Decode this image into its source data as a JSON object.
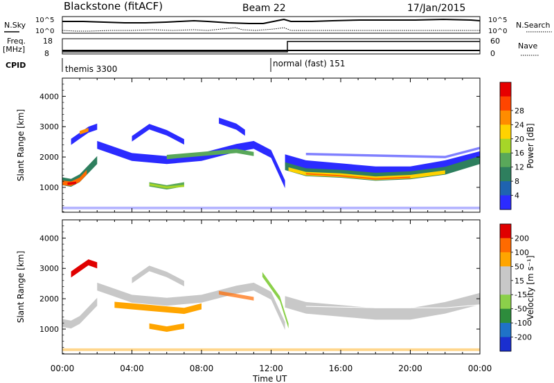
{
  "header": {
    "station": "Blackstone (fitACF)",
    "beam": "Beam 22",
    "date": "17/Jan/2015"
  },
  "top_panels": {
    "nsky_label": "N.Sky",
    "nsky_tick_high": "10^5",
    "nsky_tick_low": "10^0",
    "nsearch_label": "N.Search",
    "nsearch_tick_high": "10^5",
    "nsearch_tick_low": "10^0",
    "freq_label": "Freq.",
    "freq_unit": "[MHz]",
    "freq_tick_high": "18",
    "freq_tick_low": "8",
    "nave_label": "Nave",
    "nave_tick_high": "60",
    "nave_tick_low": "0",
    "cpid_label": "CPID",
    "cpid_segments": [
      {
        "name": "themis 3300",
        "start_hour": 0,
        "end_hour": 12.0
      },
      {
        "name": "normal (fast) 151",
        "start_hour": 12.0,
        "end_hour": 24
      }
    ]
  },
  "chart_data": [
    {
      "type": "heatmap",
      "quantity": "power",
      "ylabel": "Slant Range [km]",
      "xlabel": "Time UT",
      "xlim": [
        0,
        24
      ],
      "ylim": [
        180,
        4600
      ],
      "x_ticks": [
        "00:00",
        "04:00",
        "08:00",
        "12:00",
        "16:00",
        "20:00",
        "00:00"
      ],
      "y_ticks": [
        1000,
        2000,
        3000,
        4000
      ],
      "colorbar_label": "Power [dB]",
      "colorbar_ticks": [
        4,
        8,
        12,
        16,
        20,
        24,
        28
      ],
      "colorbar_colors": [
        "#2b2bff",
        "#1f63b0",
        "#2e7f5e",
        "#59a85a",
        "#a6d628",
        "#ffd200",
        "#ff8c00",
        "#ff4500",
        "#e60000"
      ]
    },
    {
      "type": "heatmap",
      "quantity": "velocity",
      "ylabel": "Slant Range [km]",
      "xlabel": "Time UT",
      "xlim": [
        0,
        24
      ],
      "ylim": [
        180,
        4600
      ],
      "x_ticks": [
        "00:00",
        "04:00",
        "08:00",
        "12:00",
        "16:00",
        "20:00",
        "00:00"
      ],
      "y_ticks": [
        1000,
        2000,
        3000,
        4000
      ],
      "colorbar_label": "Velocity [m s⁻¹]",
      "colorbar_ticks": [
        200,
        100,
        50,
        15,
        -15,
        -50,
        -100,
        -200
      ],
      "colorbar_colors": [
        "#1a2fd0",
        "#1f72c8",
        "#2d8c3c",
        "#8bd04a",
        "#c8c8c8",
        "#c8c8c8",
        "#ffa500",
        "#ff6a00",
        "#e00000"
      ]
    }
  ],
  "x_axis_label": "Time UT"
}
